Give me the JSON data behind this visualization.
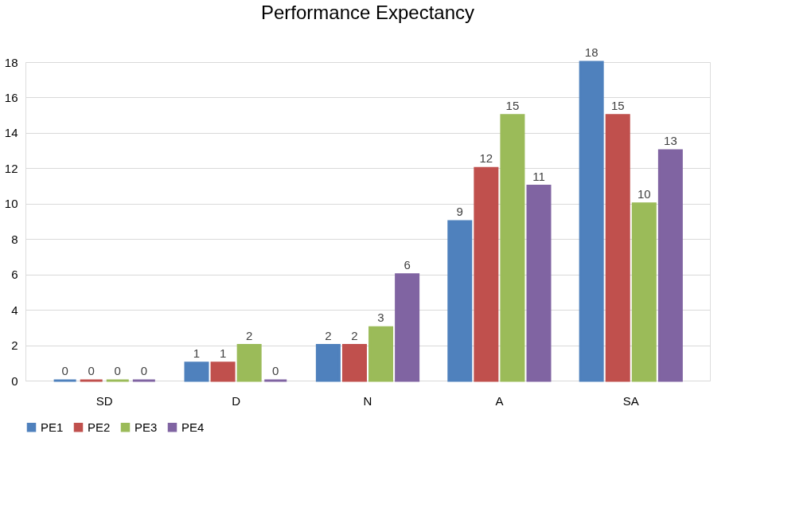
{
  "chart_data": {
    "type": "bar",
    "title": "Performance Expectancy",
    "categories": [
      "SD",
      "D",
      "N",
      "A",
      "SA"
    ],
    "series": [
      {
        "name": "PE1",
        "color": "#4f81bd",
        "values": [
          0,
          1,
          2,
          9,
          18
        ]
      },
      {
        "name": "PE2",
        "color": "#c0504d",
        "values": [
          0,
          1,
          2,
          12,
          15
        ]
      },
      {
        "name": "PE3",
        "color": "#9bbb59",
        "values": [
          0,
          2,
          3,
          15,
          10
        ]
      },
      {
        "name": "PE4",
        "color": "#8064a2",
        "values": [
          0,
          0,
          6,
          11,
          13
        ]
      }
    ],
    "ylim": [
      0,
      18
    ],
    "yticks": [
      0,
      2,
      4,
      6,
      8,
      10,
      12,
      14,
      16,
      18
    ],
    "grid": "y",
    "legend": "bottom",
    "data_labels": true
  }
}
